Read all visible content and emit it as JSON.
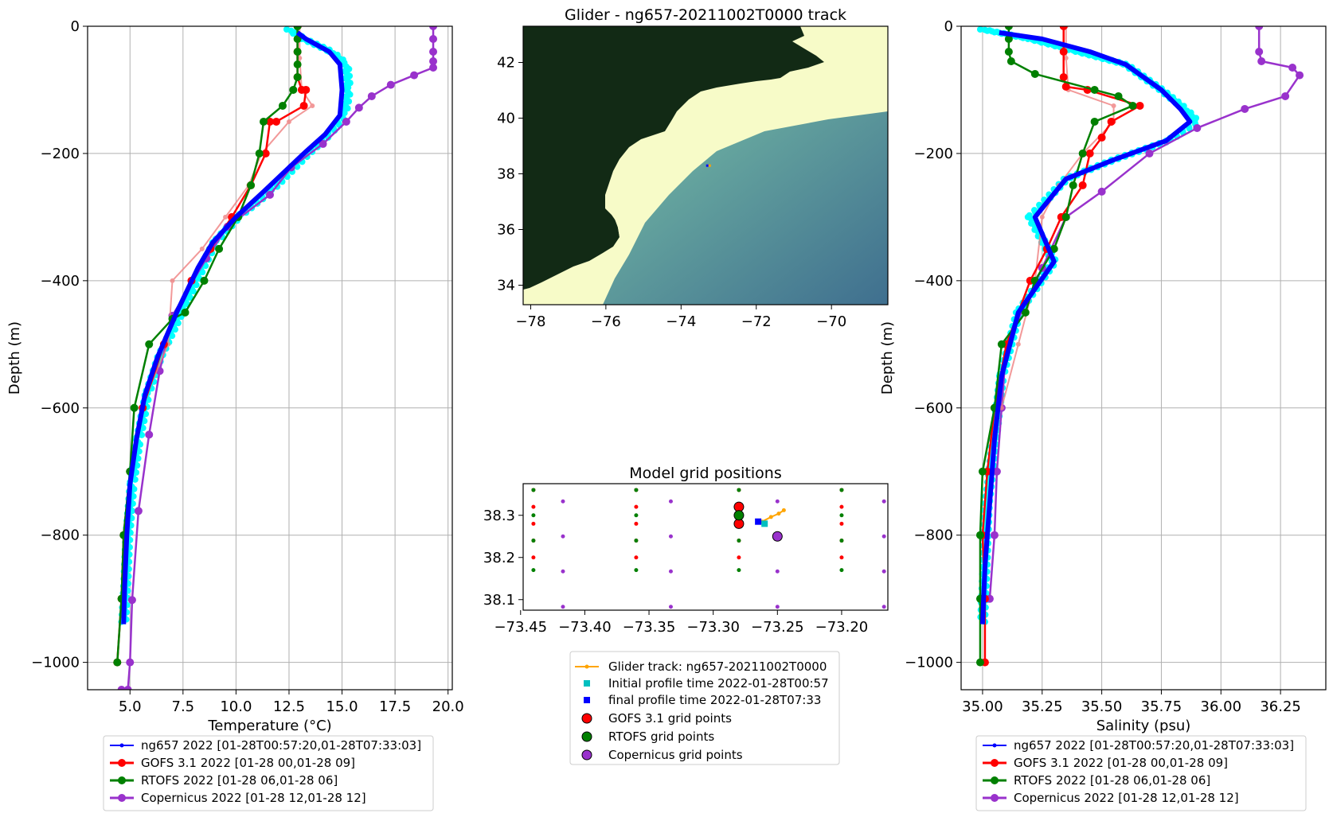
{
  "colors": {
    "glider_obs": "#00ffff",
    "glider_mean": "#0000ff",
    "gofs": "#ff0000",
    "gofs_faint": "#f08080",
    "rtofs": "#008000",
    "copernicus": "#9932cc",
    "track": "#ffa500",
    "initial": "#00bfbf",
    "final": "#0000ff",
    "land": "#122a15",
    "shelf": "#f7fbc8",
    "deep": "#4a7f98"
  },
  "chart_data": [
    {
      "type": "line",
      "id": "temperature",
      "title": "",
      "xlabel": "Temperature (°C)",
      "ylabel": "Depth (m)",
      "xlim": [
        3.0,
        20.2
      ],
      "ylim": [
        -1043,
        0
      ],
      "xticks": [
        "5.0",
        "7.5",
        "10.0",
        "12.5",
        "15.0",
        "17.5",
        "20.0"
      ],
      "xtick_values": [
        5.0,
        7.5,
        10.0,
        12.5,
        15.0,
        17.5,
        20.0
      ],
      "yticks": [
        "0",
        "−200",
        "−400",
        "−600",
        "−800",
        "−1000"
      ],
      "ytick_values": [
        0,
        -200,
        -400,
        -600,
        -800,
        -1000
      ],
      "grid": true,
      "legend_position": "below",
      "series": [
        {
          "name": "ng657 2022 [01-28T00:57:20,01-28T07:33:03]",
          "role": "glider_obs",
          "x": [
            12.5,
            13.2,
            14.5,
            15.2,
            15.3,
            15.1,
            14.4,
            13.4,
            11.6,
            10.1,
            9.0,
            8.4,
            7.4,
            6.4,
            5.8,
            5.4,
            5.1,
            4.9,
            4.8,
            4.7
          ],
          "y": [
            -5,
            -20,
            -40,
            -60,
            -100,
            -140,
            -170,
            -200,
            -260,
            -300,
            -340,
            -380,
            -450,
            -520,
            -580,
            -650,
            -720,
            -800,
            -880,
            -940
          ]
        },
        {
          "name": "ng657 2022 [01-28T00:57:20,01-28T07:33:03]",
          "role": "glider_mean",
          "x": [
            12.9,
            13.3,
            14.4,
            14.9,
            15.0,
            14.9,
            14.2,
            13.2,
            11.3,
            10.0,
            8.9,
            8.2,
            7.2,
            6.3,
            5.7,
            5.3,
            5.0,
            4.85,
            4.75,
            4.7
          ],
          "y": [
            -10,
            -20,
            -40,
            -60,
            -100,
            -140,
            -170,
            -200,
            -260,
            -300,
            -340,
            -380,
            -450,
            -520,
            -580,
            -650,
            -720,
            -800,
            -880,
            -940
          ]
        },
        {
          "name": "GOFS 3.1 2022 [01-28 00,01-28 09]",
          "role": "gofs",
          "x": [
            12.9,
            12.9,
            12.9,
            13.1,
            13.3,
            13.2,
            11.9,
            11.6,
            11.4,
            10.7,
            9.8,
            8.8,
            7.9,
            6.6,
            5.6,
            5.0,
            4.7,
            4.6,
            4.4
          ],
          "y": [
            0,
            -40,
            -80,
            -100,
            -100,
            -125,
            -150,
            -150,
            -200,
            -250,
            -300,
            -350,
            -400,
            -500,
            -600,
            -700,
            -800,
            -900,
            -1000
          ]
        },
        {
          "name": "GOFS 3.1 2022 [01-28 00,01-28 09]",
          "role": "gofs_faint",
          "x": [
            13.0,
            13.0,
            13.1,
            13.6,
            12.5,
            11.2,
            10.6,
            9.5,
            8.4,
            7.0,
            6.8,
            5.5
          ],
          "y": [
            0,
            -50,
            -100,
            -125,
            -150,
            -200,
            -250,
            -300,
            -350,
            -400,
            -500,
            -600
          ]
        },
        {
          "name": "RTOFS 2022 [01-28 06,01-28 06]",
          "role": "rtofs",
          "x": [
            12.9,
            12.9,
            12.9,
            12.9,
            12.9,
            12.7,
            12.2,
            11.3,
            11.1,
            10.7,
            10.1,
            9.2,
            8.5,
            7.6,
            7.0,
            5.9,
            5.2,
            5.0,
            4.7,
            4.6,
            4.4
          ],
          "y": [
            0,
            -20,
            -40,
            -60,
            -80,
            -100,
            -125,
            -150,
            -200,
            -250,
            -300,
            -350,
            -400,
            -450,
            -460,
            -500,
            -600,
            -700,
            -800,
            -900,
            -1000
          ]
        },
        {
          "name": "Copernicus 2022 [01-28 12,01-28 12]",
          "role": "copernicus",
          "x": [
            19.3,
            19.3,
            19.3,
            19.3,
            19.3,
            18.4,
            17.3,
            16.4,
            15.8,
            15.2,
            14.1,
            12.6,
            11.6,
            9.6,
            8.6,
            7.0,
            6.4,
            5.9,
            5.4,
            5.1,
            5.0,
            4.9,
            4.6
          ],
          "y": [
            0,
            -20,
            -40,
            -55,
            -65,
            -77,
            -92,
            -110,
            -128,
            -150,
            -185,
            -222,
            -265,
            -315,
            -365,
            -455,
            -542,
            -642,
            -762,
            -902,
            -1000,
            -1043,
            -1043
          ]
        }
      ]
    },
    {
      "type": "heatmap",
      "id": "track_map",
      "title": "Glider - ng657-20211002T0000 track",
      "xlim": [
        -78.2,
        -68.5
      ],
      "ylim": [
        33.3,
        43.3
      ],
      "xticks": [
        "−78",
        "−76",
        "−74",
        "−72",
        "−70"
      ],
      "xtick_values": [
        -78,
        -76,
        -74,
        -72,
        -70
      ],
      "yticks": [
        "34",
        "36",
        "38",
        "40",
        "42"
      ],
      "ytick_values": [
        34,
        36,
        38,
        40,
        42
      ],
      "glider_position": {
        "lon": -73.27,
        "lat": 38.28
      }
    },
    {
      "type": "scatter",
      "id": "grid_positions",
      "title": "Model grid positions",
      "xlim": [
        -73.448,
        -73.164
      ],
      "ylim": [
        38.075,
        38.375
      ],
      "xticks": [
        "−73.45",
        "−73.40",
        "−73.35",
        "−73.30",
        "−73.25",
        "−73.20"
      ],
      "xtick_values": [
        -73.45,
        -73.4,
        -73.35,
        -73.3,
        -73.25,
        -73.2
      ],
      "yticks": [
        "38.1",
        "38.2",
        "38.3"
      ],
      "ytick_values": [
        38.1,
        38.2,
        38.3
      ],
      "legend_position": "below",
      "gofs_x": [
        -73.44,
        -73.36,
        -73.28,
        -73.2
      ],
      "gofs_y": [
        38.36,
        38.32,
        38.28,
        38.24,
        38.2
      ],
      "rtofs_x": [
        -73.44,
        -73.36,
        -73.28,
        -73.2
      ],
      "rtofs_y": [
        38.36,
        38.3,
        38.24,
        38.17
      ],
      "copernicus_x": [
        -73.417,
        -73.333,
        -73.25,
        -73.167
      ],
      "copernicus_y": [
        38.333,
        38.25,
        38.167,
        38.083
      ],
      "gofs_selected": [
        [
          -73.28,
          38.32
        ],
        [
          -73.28,
          38.28
        ]
      ],
      "rtofs_selected": [
        [
          -73.28,
          38.3
        ]
      ],
      "copernicus_selected": [
        [
          -73.25,
          38.25
        ]
      ],
      "track": {
        "x": [
          -73.262,
          -73.255,
          -73.249,
          -73.245
        ],
        "y": [
          38.285,
          38.296,
          38.304,
          38.312
        ]
      },
      "initial": {
        "x": -73.26,
        "y": 38.28
      },
      "final": {
        "x": -73.265,
        "y": 38.285
      },
      "legend": [
        "Glider track: ng657-20211002T0000",
        "Initial profile time 2022-01-28T00:57",
        "final profile time 2022-01-28T07:33",
        "GOFS 3.1 grid points",
        "RTOFS grid points",
        "Copernicus grid points"
      ]
    },
    {
      "type": "line",
      "id": "salinity",
      "title": "",
      "xlabel": "Salinity (psu)",
      "ylabel": "Depth (m)",
      "xlim": [
        34.91,
        36.44
      ],
      "ylim": [
        -1043,
        0
      ],
      "xticks": [
        "35.00",
        "35.25",
        "35.50",
        "35.75",
        "36.00",
        "36.25"
      ],
      "xtick_values": [
        35.0,
        35.25,
        35.5,
        35.75,
        36.0,
        36.25
      ],
      "yticks": [
        "0",
        "−200",
        "−400",
        "−600",
        "−800",
        "−1000"
      ],
      "ytick_values": [
        0,
        -200,
        -400,
        -600,
        -800,
        -1000
      ],
      "grid": true,
      "legend_position": "below",
      "series": [
        {
          "name": "ng657 2022 [01-28T00:57:20,01-28T07:33:03]",
          "role": "glider_obs",
          "x": [
            35.0,
            35.2,
            35.4,
            35.6,
            35.75,
            35.85,
            35.9,
            35.78,
            35.55,
            35.35,
            35.2,
            35.3,
            35.15,
            35.08,
            35.05,
            35.02,
            35.01,
            35.0
          ],
          "y": [
            -5,
            -20,
            -40,
            -60,
            -100,
            -130,
            -150,
            -180,
            -210,
            -240,
            -300,
            -370,
            -450,
            -550,
            -650,
            -750,
            -850,
            -940
          ]
        },
        {
          "name": "ng657 2022 [01-28T00:57:20,01-28T07:33:03]",
          "role": "glider_mean",
          "x": [
            35.07,
            35.25,
            35.45,
            35.6,
            35.75,
            35.83,
            35.87,
            35.77,
            35.55,
            35.35,
            35.22,
            35.3,
            35.15,
            35.08,
            35.05,
            35.03,
            35.01,
            35.0
          ],
          "y": [
            -10,
            -20,
            -40,
            -60,
            -100,
            -130,
            -150,
            -180,
            -210,
            -240,
            -300,
            -370,
            -450,
            -550,
            -650,
            -750,
            -850,
            -940
          ]
        },
        {
          "name": "GOFS 3.1 2022 [01-28 00,01-28 09]",
          "role": "gofs",
          "x": [
            35.34,
            35.34,
            35.34,
            35.35,
            35.44,
            35.66,
            35.54,
            35.5,
            35.45,
            35.42,
            35.33,
            35.27,
            35.2,
            35.1,
            35.05,
            35.02,
            35.0,
            35.01,
            35.01
          ],
          "y": [
            0,
            -40,
            -80,
            -95,
            -100,
            -125,
            -150,
            -175,
            -200,
            -250,
            -300,
            -350,
            -400,
            -500,
            -600,
            -700,
            -800,
            -900,
            -1000
          ]
        },
        {
          "name": "GOFS 3.1 2022 [01-28 00,01-28 09]",
          "role": "gofs_faint",
          "x": [
            35.35,
            35.35,
            35.36,
            35.55,
            35.55,
            35.42,
            35.32,
            35.25,
            35.22,
            35.15,
            35.08
          ],
          "y": [
            0,
            -50,
            -100,
            -125,
            -150,
            -200,
            -250,
            -300,
            -400,
            -500,
            -600
          ]
        },
        {
          "name": "RTOFS 2022 [01-28 06,01-28 06]",
          "role": "rtofs",
          "x": [
            35.11,
            35.11,
            35.11,
            35.12,
            35.22,
            35.47,
            35.57,
            35.63,
            35.47,
            35.42,
            35.38,
            35.35,
            35.3,
            35.22,
            35.18,
            35.08,
            35.05,
            35.0,
            34.99,
            34.99,
            34.99
          ],
          "y": [
            0,
            -20,
            -40,
            -55,
            -75,
            -100,
            -110,
            -125,
            -150,
            -200,
            -250,
            -300,
            -350,
            -400,
            -450,
            -500,
            -600,
            -700,
            -800,
            -900,
            -1000
          ]
        },
        {
          "name": "Copernicus 2022 [01-28 12,01-28 12]",
          "role": "copernicus",
          "x": [
            36.16,
            36.16,
            36.17,
            36.3,
            36.33,
            36.27,
            36.1,
            35.9,
            35.7,
            35.5,
            35.35,
            35.25,
            35.1,
            35.08,
            35.06,
            35.05,
            35.03
          ],
          "y": [
            0,
            -40,
            -55,
            -65,
            -77,
            -110,
            -130,
            -160,
            -200,
            -260,
            -300,
            -380,
            -500,
            -600,
            -700,
            -800,
            -900
          ]
        }
      ]
    }
  ]
}
